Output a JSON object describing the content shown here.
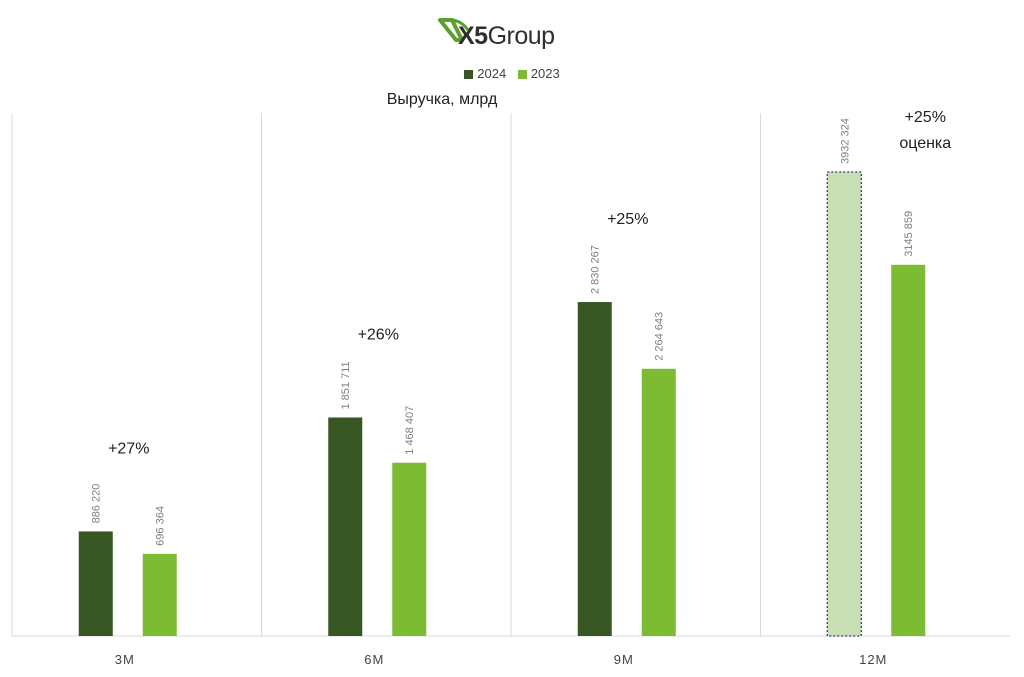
{
  "logo": {
    "prefix": "X5",
    "suffix": "Group",
    "colors": {
      "mark": "#5aa02c",
      "text": "#2f2f2f"
    }
  },
  "colors": {
    "series_2024": "#375623",
    "series_2023": "#7cbb32",
    "estimate_fill": "#c8e0b4",
    "estimate_border": "#1f3864",
    "grid": "#d9d9d9"
  },
  "chart_data": {
    "type": "bar",
    "title": "Выручка, млрд",
    "categories": [
      "3M",
      "6M",
      "9M",
      "12M"
    ],
    "series": [
      {
        "name": "2024",
        "values": [
          886220,
          1851711,
          2830267,
          3932324
        ],
        "labels": [
          "886 220",
          "1 851 711",
          "2 830 267",
          "3932 324"
        ],
        "estimate": [
          false,
          false,
          false,
          true
        ]
      },
      {
        "name": "2023",
        "values": [
          696364,
          1468407,
          2264643,
          3145859
        ],
        "labels": [
          "696 364",
          "1 468 407",
          "2 264 643",
          "3145 859"
        ]
      }
    ],
    "annotations": [
      "+27%",
      "+26%",
      "+25%",
      "+25%\nоценка"
    ],
    "ylim": [
      0,
      4100000
    ],
    "legend_position": "top-center",
    "grid": "vertical category separators"
  }
}
